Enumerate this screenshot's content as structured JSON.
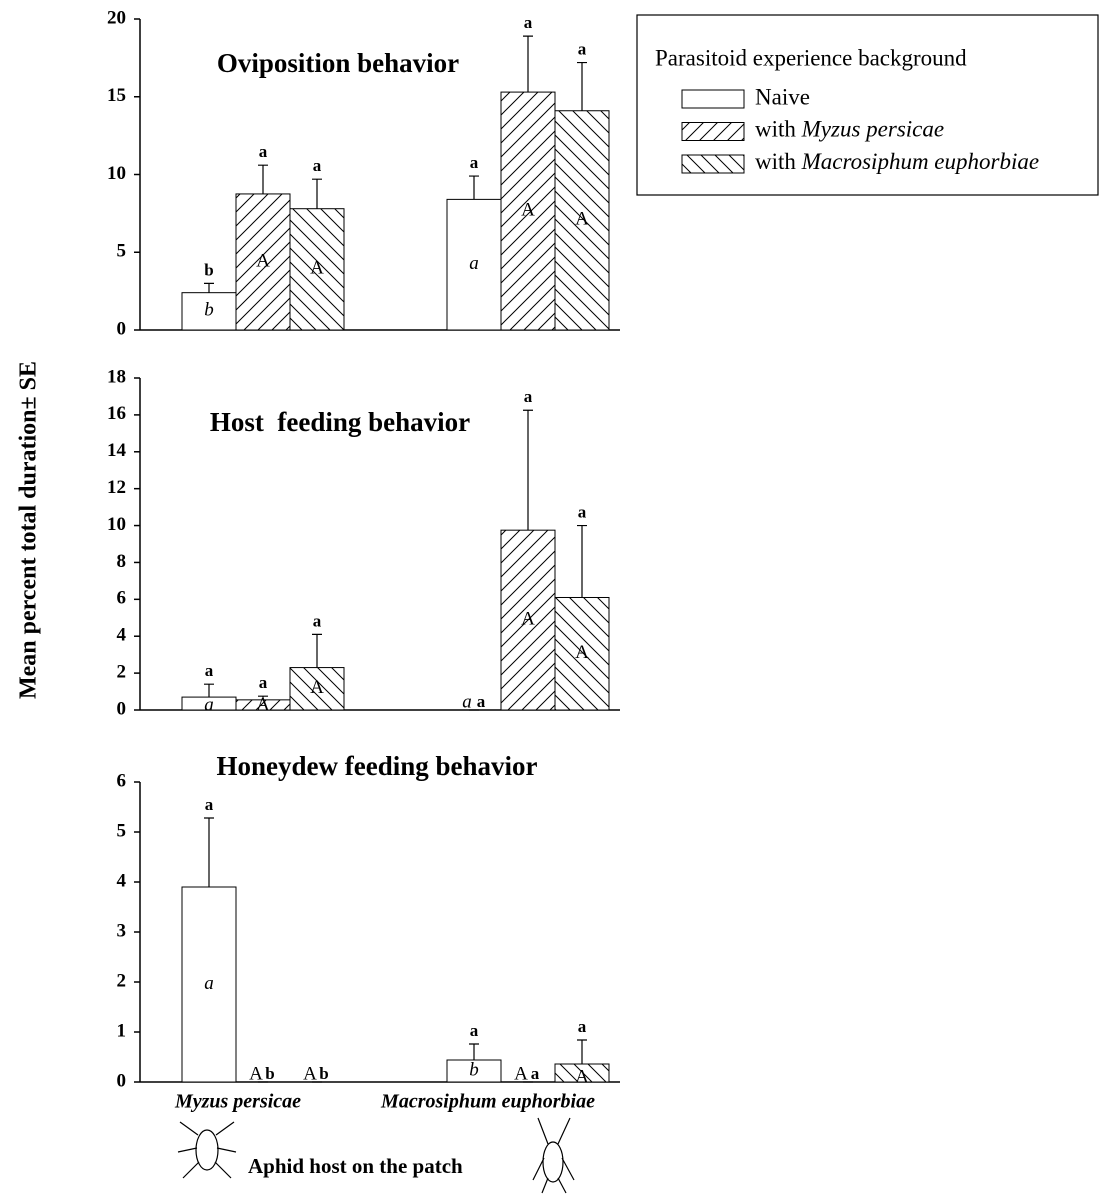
{
  "y_axis_label": "Mean percent total duration± SE",
  "x_axis_label": "Aphid host on the patch",
  "categories": [
    "Myzus persicae",
    "Macrosiphum euphorbiae"
  ],
  "legend": {
    "title": "Parasitoid experience background",
    "entries": [
      "Naive",
      "with Myzus persicae",
      "with Macrosiphum euphorbiae"
    ]
  },
  "chart_data": [
    {
      "type": "bar",
      "title": "Oviposition behavior",
      "ylim": [
        0,
        20
      ],
      "yticks": [
        0,
        5,
        10,
        15,
        20
      ],
      "series": [
        {
          "values": [
            2.4,
            8.4
          ],
          "errors": [
            0.6,
            1.5
          ],
          "top_labels": [
            "b",
            "a"
          ],
          "inner_labels": [
            "b",
            "a"
          ]
        },
        {
          "values": [
            8.75,
            15.3
          ],
          "errors": [
            1.85,
            3.6
          ],
          "top_labels": [
            "a",
            "a"
          ],
          "inner_labels": [
            "A",
            "A"
          ]
        },
        {
          "values": [
            7.8,
            14.1
          ],
          "errors": [
            1.9,
            3.1
          ],
          "top_labels": [
            "a",
            "a"
          ],
          "inner_labels": [
            "A",
            "A"
          ]
        }
      ]
    },
    {
      "type": "bar",
      "title": "Host  feeding behavior",
      "ylim": [
        0,
        18
      ],
      "yticks": [
        0,
        2,
        4,
        6,
        8,
        10,
        12,
        14,
        16,
        18
      ],
      "series": [
        {
          "values": [
            0.7,
            0
          ],
          "errors": [
            0.7,
            0
          ],
          "top_labels": [
            "a",
            "a"
          ],
          "inner_labels": [
            "a",
            "a"
          ]
        },
        {
          "values": [
            0.55,
            9.75
          ],
          "errors": [
            0.2,
            6.5
          ],
          "top_labels": [
            "a",
            "a"
          ],
          "inner_labels": [
            "A",
            "A"
          ]
        },
        {
          "values": [
            2.3,
            6.1
          ],
          "errors": [
            1.8,
            3.9
          ],
          "top_labels": [
            "a",
            "a"
          ],
          "inner_labels": [
            "A",
            "A"
          ]
        }
      ]
    },
    {
      "type": "bar",
      "title": "Honeydew feeding behavior",
      "ylim": [
        0,
        6
      ],
      "yticks": [
        0,
        1,
        2,
        3,
        4,
        5,
        6
      ],
      "series": [
        {
          "values": [
            3.9,
            0.44
          ],
          "errors": [
            1.38,
            0.32
          ],
          "top_labels": [
            "a",
            "a"
          ],
          "inner_labels": [
            "a",
            "b"
          ]
        },
        {
          "values": [
            0,
            0
          ],
          "errors": [
            0,
            0
          ],
          "top_labels": [
            "b",
            "a"
          ],
          "inner_labels": [
            "A",
            "A"
          ]
        },
        {
          "values": [
            0,
            0.36
          ],
          "errors": [
            0,
            0.48
          ],
          "top_labels": [
            "b",
            "a"
          ],
          "inner_labels": [
            "A",
            "A"
          ]
        }
      ]
    }
  ]
}
